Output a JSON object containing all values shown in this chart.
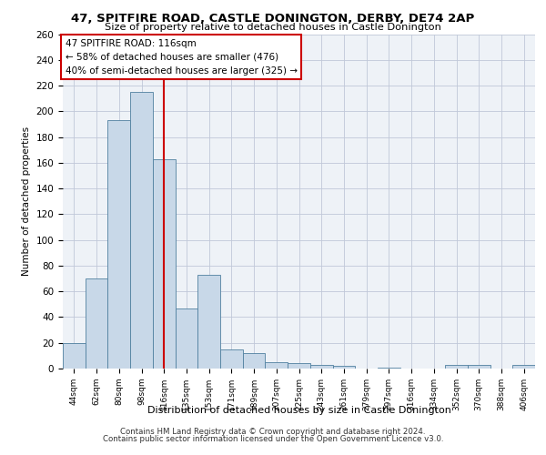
{
  "title": "47, SPITFIRE ROAD, CASTLE DONINGTON, DERBY, DE74 2AP",
  "subtitle": "Size of property relative to detached houses in Castle Donington",
  "xlabel": "Distribution of detached houses by size in Castle Donington",
  "ylabel": "Number of detached properties",
  "footer_line1": "Contains HM Land Registry data © Crown copyright and database right 2024.",
  "footer_line2": "Contains public sector information licensed under the Open Government Licence v3.0.",
  "annotation_line1": "47 SPITFIRE ROAD: 116sqm",
  "annotation_line2": "← 58% of detached houses are smaller (476)",
  "annotation_line3": "40% of semi-detached houses are larger (325) →",
  "bar_labels": [
    "44sqm",
    "62sqm",
    "80sqm",
    "98sqm",
    "116sqm",
    "135sqm",
    "153sqm",
    "171sqm",
    "189sqm",
    "207sqm",
    "225sqm",
    "243sqm",
    "261sqm",
    "279sqm",
    "297sqm",
    "316sqm",
    "334sqm",
    "352sqm",
    "370sqm",
    "388sqm",
    "406sqm"
  ],
  "bar_values": [
    20,
    70,
    193,
    215,
    163,
    47,
    73,
    15,
    12,
    5,
    4,
    3,
    2,
    0,
    1,
    0,
    0,
    3,
    3,
    0,
    3
  ],
  "bar_color": "#c8d8e8",
  "bar_edge_color": "#5080a0",
  "highlight_bar_index": 4,
  "highlight_line_color": "#cc0000",
  "grid_color": "#c0c8d8",
  "background_color": "#eef2f7",
  "annotation_box_color": "#cc0000",
  "ylim": [
    0,
    260
  ],
  "yticks": [
    0,
    20,
    40,
    60,
    80,
    100,
    120,
    140,
    160,
    180,
    200,
    220,
    240,
    260
  ]
}
